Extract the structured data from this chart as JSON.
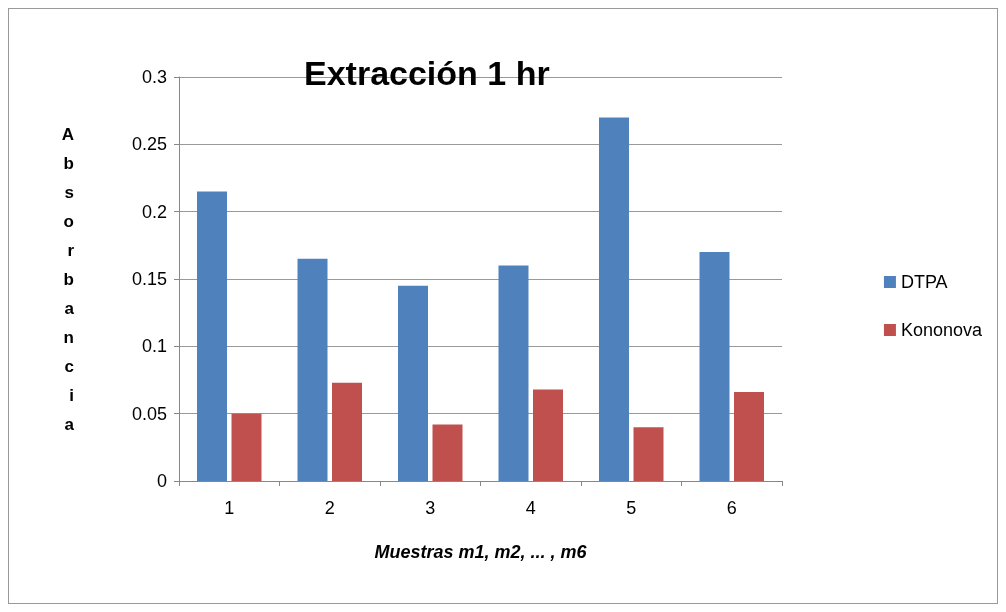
{
  "chart_data": {
    "type": "bar",
    "title": "Extracción 1 hr",
    "xlabel": "Muestras m1, m2, ... , m6",
    "ylabel": "Absorbancia",
    "categories": [
      "1",
      "2",
      "3",
      "4",
      "5",
      "6"
    ],
    "series": [
      {
        "name": "DTPA",
        "color": "#4f81bd",
        "values": [
          0.215,
          0.165,
          0.145,
          0.16,
          0.27,
          0.17
        ]
      },
      {
        "name": "Kononova",
        "color": "#c0504d",
        "values": [
          0.05,
          0.073,
          0.042,
          0.068,
          0.04,
          0.066
        ]
      }
    ],
    "ylim": [
      0,
      0.3
    ],
    "yticks": [
      0,
      0.05,
      0.1,
      0.15,
      0.2,
      0.25,
      0.3
    ],
    "grid": "y",
    "legend": "right"
  }
}
